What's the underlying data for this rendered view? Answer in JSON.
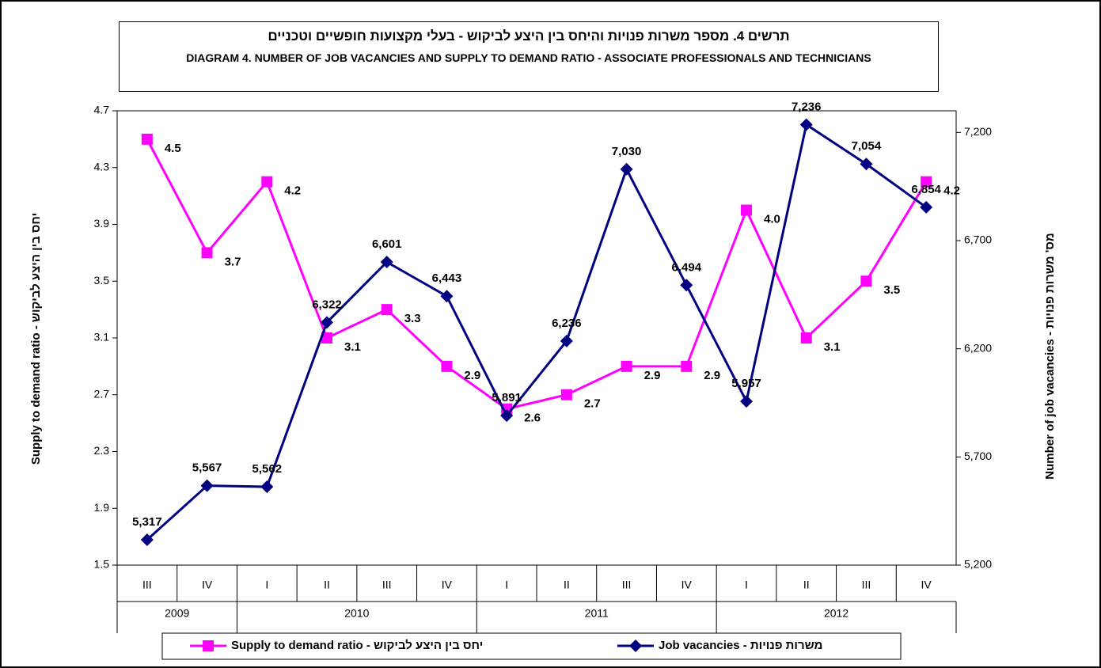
{
  "chart_data": {
    "type": "line",
    "title": "תרשים 4. מספר משרות פנויות והיחס בין היצע לביקוש - בעלי מקצועות חופשיים וטכניים",
    "subtitle": "DIAGRAM 4. NUMBER OF JOB VACANCIES AND SUPPLY TO DEMAND RATIO - ASSOCIATE PROFESSIONALS AND TECHNICIANS",
    "y_label": "Supply to demand ratio - יחס בין היצע לביקוש",
    "y2_label": "Number of job vacancies - מס' משרות פנויות",
    "categories": [
      "III",
      "IV",
      "I",
      "II",
      "III",
      "IV",
      "I",
      "II",
      "III",
      "IV",
      "I",
      "II",
      "III",
      "IV"
    ],
    "groups": [
      {
        "label": "2009",
        "count": 2
      },
      {
        "label": "2010",
        "count": 4
      },
      {
        "label": "2011",
        "count": 4
      },
      {
        "label": "2012",
        "count": 4
      }
    ],
    "ylim": [
      1.5,
      4.7
    ],
    "yticks": [
      1.5,
      1.9,
      2.3,
      2.7,
      3.1,
      3.5,
      3.9,
      4.3,
      4.7
    ],
    "y2lim": [
      5200,
      7300
    ],
    "y2ticks": [
      {
        "value": 5200,
        "label": "5,200"
      },
      {
        "value": 5700,
        "label": "5,700"
      },
      {
        "value": 6200,
        "label": "6,200"
      },
      {
        "value": 6700,
        "label": "6,700"
      },
      {
        "value": 7200,
        "label": "7,200"
      }
    ],
    "series": [
      {
        "name": "Supply to demand ratio - יחס בין היצע לביקוש",
        "color": "#ff00ff",
        "marker": "square",
        "values": [
          4.5,
          3.7,
          4.2,
          3.1,
          3.3,
          2.9,
          2.6,
          2.7,
          2.9,
          2.9,
          4.0,
          3.1,
          3.5,
          4.2
        ],
        "value_labels": [
          "4.5",
          "3.7",
          "4.2",
          "3.1",
          "3.3",
          "2.9",
          "2.6",
          "2.7",
          "2.9",
          "2.9",
          "4.0",
          "3.1",
          "3.5",
          "4.2"
        ]
      },
      {
        "name": "Job vacancies - משרות פנויות",
        "color": "#000080",
        "marker": "diamond",
        "axis": "y2",
        "values": [
          5317,
          5567,
          5562,
          6322,
          6601,
          6443,
          5891,
          6236,
          7030,
          6494,
          5957,
          7236,
          7054,
          6854
        ],
        "value_labels": [
          "5,317",
          "5,567",
          "5,562",
          "6,322",
          "6,601",
          "6,443",
          "5,891",
          "6,236",
          "7,030",
          "6,494",
          "5,957",
          "7,236",
          "7,054",
          "6,854"
        ]
      }
    ]
  }
}
